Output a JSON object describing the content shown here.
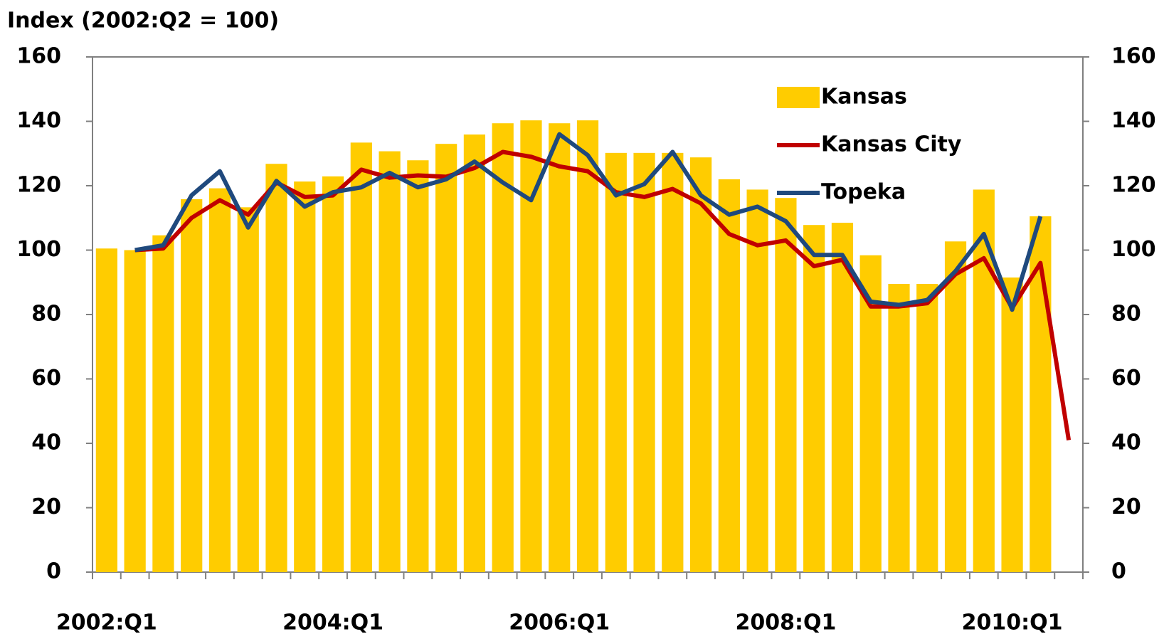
{
  "chart_data": {
    "type": "bar-line",
    "title": "Index (2002:Q2 = 100)",
    "categories": [
      "2002:Q1",
      null,
      null,
      null,
      null,
      null,
      null,
      null,
      "2004:Q1",
      null,
      null,
      null,
      null,
      null,
      null,
      null,
      "2006:Q1",
      null,
      null,
      null,
      null,
      null,
      null,
      null,
      "2008:Q1",
      null,
      null,
      null,
      null,
      null,
      null,
      null,
      "2010:Q1",
      null,
      null
    ],
    "series": [
      {
        "name": "Kansas",
        "type": "bar",
        "color": "#ffcc00",
        "values": [
          100.5,
          100,
          104.6,
          115.8,
          119.2,
          113.3,
          126.8,
          121.3,
          122.9,
          133.4,
          130.7,
          127.9,
          133,
          135.9,
          139.4,
          140.3,
          139.4,
          140.3,
          130.2,
          130.2,
          130.2,
          128.8,
          122,
          118.8,
          116.2,
          107.8,
          108.5,
          98.4,
          89.5,
          89.5,
          102.7,
          118.8,
          91.5,
          110.5,
          null
        ]
      },
      {
        "name": "Kansas City",
        "type": "line",
        "color": "#c00000",
        "values": [
          null,
          100,
          100.5,
          110,
          115.5,
          111,
          121,
          116.5,
          117,
          125,
          122.5,
          123.2,
          122.8,
          125.5,
          130.5,
          129,
          126,
          124.5,
          118,
          116.5,
          119,
          114.5,
          105,
          101.5,
          103,
          95,
          97,
          82.5,
          82.5,
          83.5,
          92.5,
          97.5,
          82,
          96,
          41
        ]
      },
      {
        "name": "Topeka",
        "type": "line",
        "color": "#1f497d",
        "values": [
          null,
          100,
          101.5,
          117,
          124.5,
          107,
          121.5,
          113.5,
          118,
          119.5,
          124,
          119.5,
          122,
          127.5,
          121,
          115.5,
          136,
          129.5,
          117,
          120.5,
          130.5,
          117,
          111,
          113.5,
          109,
          98.5,
          98.5,
          84,
          83,
          84.5,
          93.5,
          105,
          81.5,
          110.5,
          null
        ]
      }
    ],
    "ylim": [
      0,
      160
    ],
    "yticks": [
      0,
      20,
      40,
      60,
      80,
      100,
      120,
      140,
      160
    ],
    "y2lim": [
      0,
      160
    ],
    "y2ticks": [
      0,
      20,
      40,
      60,
      80,
      100,
      120,
      140,
      160
    ],
    "grid": false,
    "legend": "top-right"
  }
}
